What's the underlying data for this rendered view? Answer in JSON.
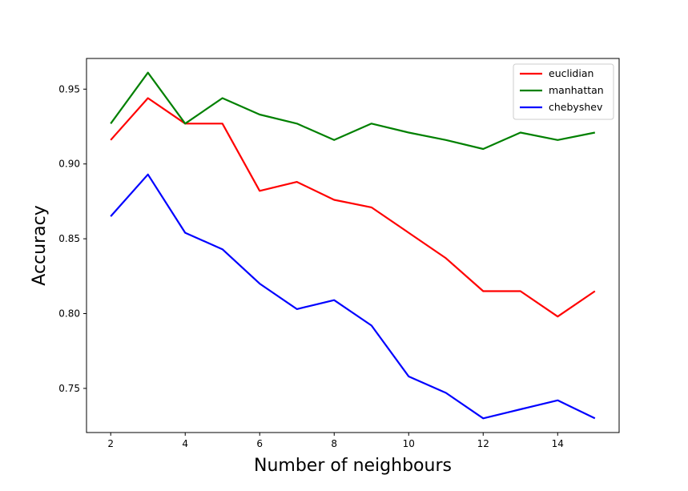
{
  "chart_data": {
    "type": "line",
    "title": "",
    "xlabel": "Number of neighbours",
    "ylabel": "Accuracy",
    "x": [
      2,
      3,
      4,
      5,
      6,
      7,
      8,
      9,
      10,
      11,
      12,
      13,
      14,
      15
    ],
    "xlim": [
      1.35,
      15.65
    ],
    "ylim": [
      0.7205,
      0.9705
    ],
    "xticks": [
      2,
      4,
      6,
      8,
      10,
      12,
      14
    ],
    "xtick_labels": [
      "2",
      "4",
      "6",
      "8",
      "10",
      "12",
      "14"
    ],
    "yticks": [
      0.75,
      0.8,
      0.85,
      0.9,
      0.95
    ],
    "ytick_labels": [
      "0.75",
      "0.80",
      "0.85",
      "0.90",
      "0.95"
    ],
    "grid": false,
    "legend_position": "top-right",
    "series": [
      {
        "name": "euclidian",
        "color": "#ff0000",
        "values": [
          0.916,
          0.944,
          0.927,
          0.927,
          0.882,
          0.888,
          0.876,
          0.871,
          0.854,
          0.837,
          0.815,
          0.815,
          0.798,
          0.815
        ]
      },
      {
        "name": "manhattan",
        "color": "#008000",
        "values": [
          0.927,
          0.961,
          0.927,
          0.944,
          0.933,
          0.927,
          0.916,
          0.927,
          0.921,
          0.916,
          0.91,
          0.921,
          0.916,
          0.921
        ]
      },
      {
        "name": "chebyshev",
        "color": "#0000ff",
        "values": [
          0.865,
          0.893,
          0.854,
          0.843,
          0.82,
          0.803,
          0.809,
          0.792,
          0.758,
          0.747,
          0.73,
          0.736,
          0.742,
          0.73
        ]
      }
    ]
  }
}
